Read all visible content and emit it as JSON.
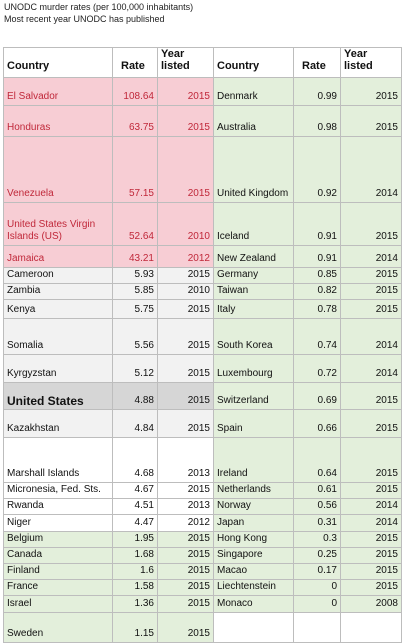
{
  "header": {
    "title": "UNODC murder rates (per 100,000 inhabitants)",
    "subtitle": "Most recent year UNODC has published"
  },
  "table": {
    "columns": [
      "Country",
      "Rate",
      "Year listed",
      "Country",
      "Rate",
      "Year listed"
    ],
    "rows": [
      [
        "El Salvador",
        108.64,
        2015,
        "Denmark",
        0.99,
        2015
      ],
      [
        "Honduras",
        63.75,
        2015,
        "Australia",
        0.98,
        2015
      ],
      [
        "Venezuela",
        57.15,
        2015,
        "United Kingdom",
        0.92,
        2014
      ],
      [
        "United States Virgin Islands (US)",
        52.64,
        2010,
        "Iceland",
        0.91,
        2015
      ],
      [
        "Jamaica",
        43.21,
        2012,
        "New Zealand",
        0.91,
        2014
      ],
      [
        "Cameroon",
        5.93,
        2015,
        "Germany",
        0.85,
        2015
      ],
      [
        "Zambia",
        5.85,
        2010,
        "Taiwan",
        0.82,
        2015
      ],
      [
        "Kenya",
        5.75,
        2015,
        "Italy",
        0.78,
        2015
      ],
      [
        "Somalia",
        5.56,
        2015,
        "South Korea",
        0.74,
        2014
      ],
      [
        "Kyrgyzstan",
        5.12,
        2015,
        "Luxembourg",
        0.72,
        2014
      ],
      [
        "United States",
        4.88,
        2015,
        "Switzerland",
        0.69,
        2015
      ],
      [
        "Kazakhstan",
        4.84,
        2015,
        "Spain",
        0.66,
        2015
      ],
      [
        "Marshall Islands",
        4.68,
        2013,
        "Ireland",
        0.64,
        2015
      ],
      [
        "Micronesia, Fed. Sts.",
        4.67,
        2015,
        "Netherlands",
        0.61,
        2015
      ],
      [
        "Rwanda",
        4.51,
        2013,
        "Norway",
        0.56,
        2014
      ],
      [
        "Niger",
        4.47,
        2012,
        "Japan",
        0.31,
        2014
      ],
      [
        "Belgium",
        1.95,
        2015,
        "Hong Kong",
        0.3,
        2015
      ],
      [
        "Canada",
        1.68,
        2015,
        "Singapore",
        0.25,
        2015
      ],
      [
        "Finland",
        1.6,
        2015,
        "Macao",
        0.17,
        2015
      ],
      [
        "France",
        1.58,
        2015,
        "Liechtenstein",
        0,
        2015
      ],
      [
        "Israel",
        1.36,
        2015,
        "Monaco",
        0,
        2008
      ],
      [
        "Sweden",
        1.15,
        2015
      ]
    ]
  }
}
